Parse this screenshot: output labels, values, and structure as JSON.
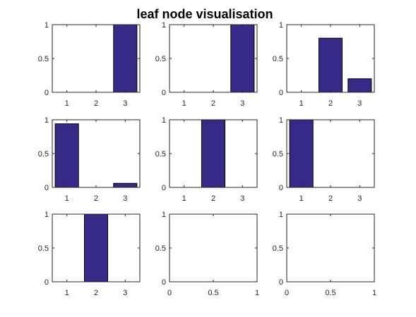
{
  "figure": {
    "title": "leaf node visualisation"
  },
  "colors": {
    "bar_fill": "#352a87",
    "bar_edge": "#000000",
    "axis": "#262626",
    "background": "#ffffff"
  },
  "chart_data": [
    {
      "type": "bar",
      "categories": [
        "1",
        "2",
        "3"
      ],
      "values": [
        0,
        0,
        1
      ],
      "ylim": [
        0,
        1
      ],
      "yticks": [
        "0",
        "0.5",
        "1"
      ]
    },
    {
      "type": "bar",
      "categories": [
        "1",
        "2",
        "3"
      ],
      "values": [
        0,
        0,
        1
      ],
      "ylim": [
        0,
        1
      ],
      "yticks": [
        "0",
        "0.5",
        "1"
      ]
    },
    {
      "type": "bar",
      "categories": [
        "1",
        "2",
        "3"
      ],
      "values": [
        0,
        0.8,
        0.2
      ],
      "ylim": [
        0,
        1
      ],
      "yticks": [
        "0",
        "0.5",
        "1"
      ]
    },
    {
      "type": "bar",
      "categories": [
        "1",
        "2",
        "3"
      ],
      "values": [
        0.94,
        0,
        0.06
      ],
      "ylim": [
        0,
        1
      ],
      "yticks": [
        "0",
        "0.5",
        "1"
      ]
    },
    {
      "type": "bar",
      "categories": [
        "1",
        "2",
        "3"
      ],
      "values": [
        0,
        1,
        0
      ],
      "ylim": [
        0,
        1
      ],
      "yticks": [
        "0",
        "0.5",
        "1"
      ]
    },
    {
      "type": "bar",
      "categories": [
        "1",
        "2",
        "3"
      ],
      "values": [
        1,
        0,
        0
      ],
      "ylim": [
        0,
        1
      ],
      "yticks": [
        "0",
        "0.5",
        "1"
      ]
    },
    {
      "type": "bar",
      "categories": [
        "1",
        "2",
        "3"
      ],
      "values": [
        0,
        1,
        0
      ],
      "ylim": [
        0,
        1
      ],
      "yticks": [
        "0",
        "0.5",
        "1"
      ]
    },
    {
      "type": "empty",
      "xlim": [
        0,
        1
      ],
      "ylim": [
        0,
        1
      ],
      "xticks": [
        "0",
        "0.5",
        "1"
      ],
      "yticks": [
        "0",
        "0.5",
        "1"
      ]
    },
    {
      "type": "empty",
      "xlim": [
        0,
        1
      ],
      "ylim": [
        0,
        1
      ],
      "xticks": [
        "0",
        "0.5",
        "1"
      ],
      "yticks": [
        "0",
        "0.5",
        "1"
      ]
    }
  ]
}
